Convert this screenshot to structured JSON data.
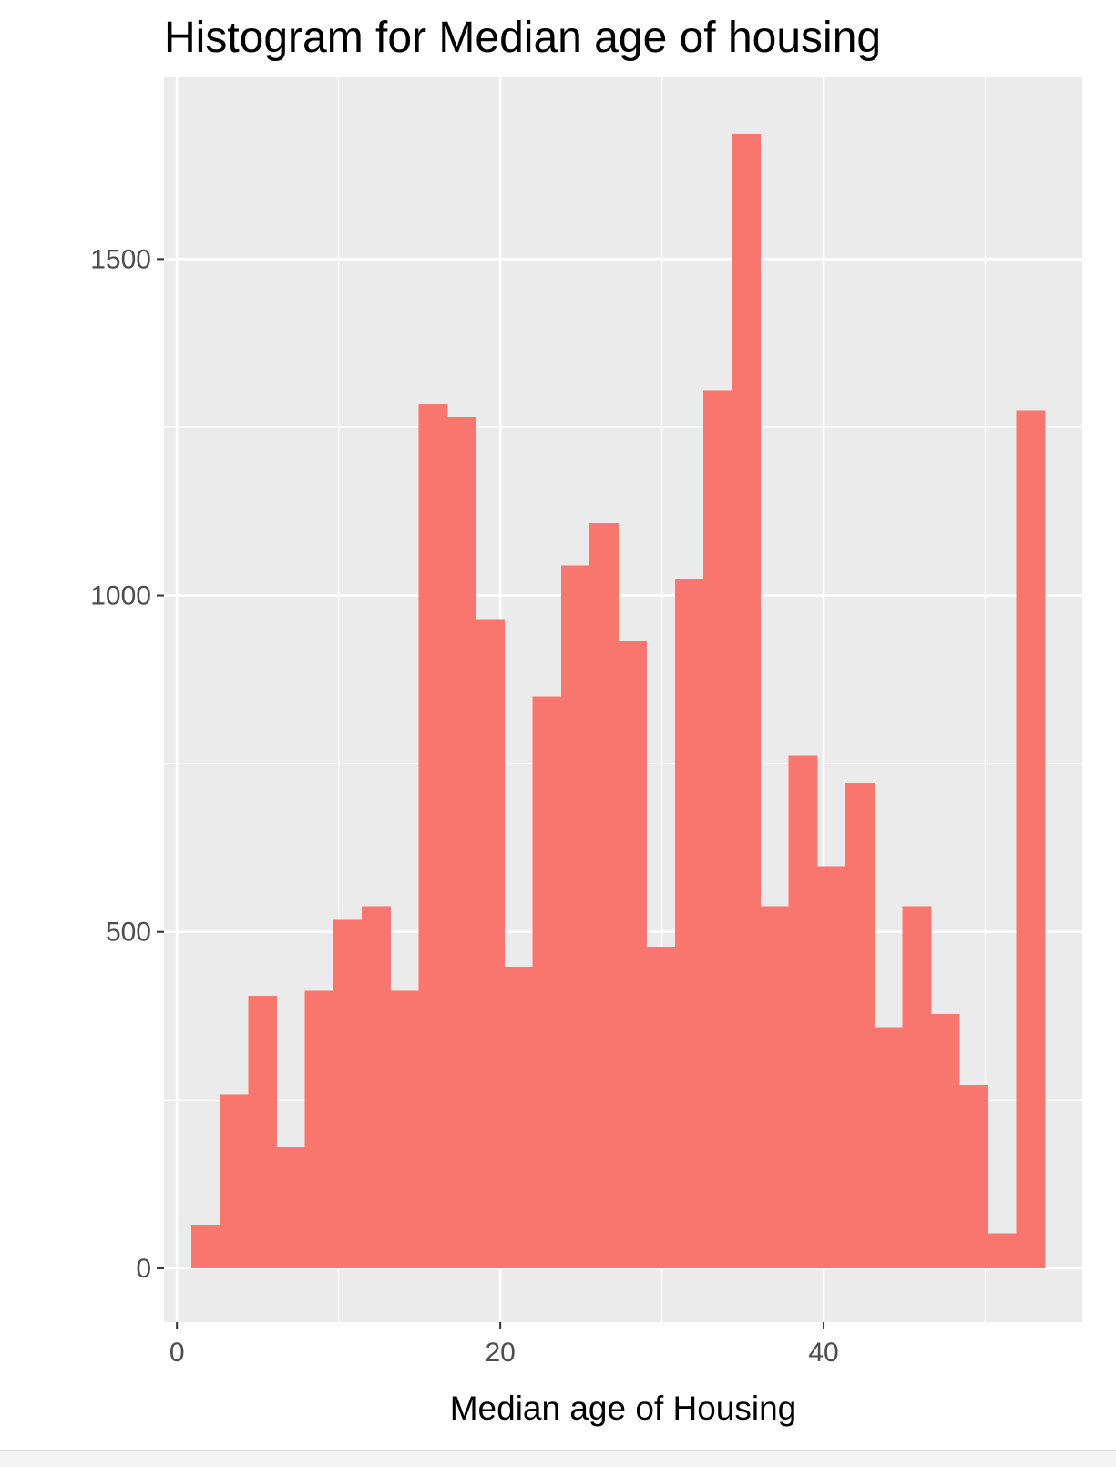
{
  "chart_data": {
    "type": "histogram",
    "title": "Histogram for Median age of housing",
    "xlabel": "Median age of Housing",
    "ylabel": "",
    "xlim": [
      -0.8,
      56.0
    ],
    "ylim": [
      -80,
      1770
    ],
    "x_ticks": [
      0,
      20,
      40
    ],
    "y_ticks": [
      0,
      500,
      1000,
      1500
    ],
    "x_minor_grid": [
      10,
      30,
      50
    ],
    "y_minor_grid": [
      250,
      750,
      1250
    ],
    "grid": true,
    "legend": "none",
    "bin_width": 1.76,
    "bin_start": 0.88,
    "counts": [
      65,
      258,
      405,
      180,
      412,
      518,
      538,
      412,
      1285,
      1265,
      965,
      448,
      850,
      1045,
      1108,
      932,
      478,
      1025,
      1305,
      1686,
      538,
      762,
      598,
      722,
      358,
      538,
      378,
      272,
      52,
      1275
    ],
    "colors": {
      "bar": "#F8766D",
      "panel": "#EBEBEB",
      "grid": "#FFFFFF",
      "tick": "#333333"
    }
  }
}
